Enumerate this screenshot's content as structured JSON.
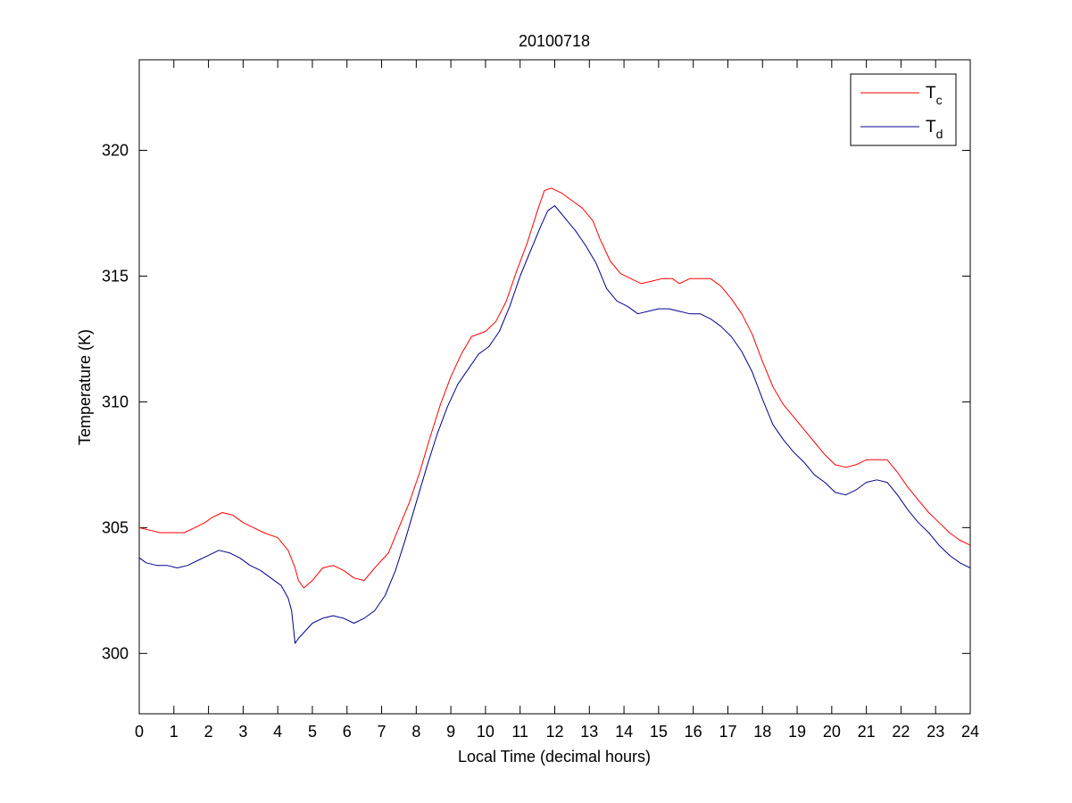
{
  "chart_data": {
    "type": "line",
    "title": "20100718",
    "xlabel": "Local Time (decimal hours)",
    "ylabel": "Temperature (K)",
    "xlim": [
      0,
      24
    ],
    "ylim": [
      297.6,
      323.6
    ],
    "xticks": [
      "0",
      "1",
      "2",
      "3",
      "4",
      "5",
      "6",
      "7",
      "8",
      "9",
      "10",
      "11",
      "12",
      "13",
      "14",
      "15",
      "16",
      "17",
      "18",
      "19",
      "20",
      "21",
      "22",
      "23",
      "24"
    ],
    "yticks": [
      "300",
      "305",
      "310",
      "315",
      "320"
    ],
    "grid": false,
    "legend_position": "top-right",
    "series": [
      {
        "name": "T",
        "subscript": "c",
        "color": "#ff0000",
        "points": [
          [
            0.0,
            305.0
          ],
          [
            0.3,
            304.9
          ],
          [
            0.6,
            304.8
          ],
          [
            1.0,
            304.8
          ],
          [
            1.3,
            304.8
          ],
          [
            1.6,
            305.0
          ],
          [
            1.9,
            305.2
          ],
          [
            2.1,
            305.4
          ],
          [
            2.4,
            305.6
          ],
          [
            2.7,
            305.5
          ],
          [
            3.0,
            305.2
          ],
          [
            3.3,
            305.0
          ],
          [
            3.6,
            304.8
          ],
          [
            4.0,
            304.6
          ],
          [
            4.3,
            304.1
          ],
          [
            4.5,
            303.4
          ],
          [
            4.6,
            302.9
          ],
          [
            4.75,
            302.6
          ],
          [
            5.0,
            302.9
          ],
          [
            5.3,
            303.4
          ],
          [
            5.6,
            303.5
          ],
          [
            5.9,
            303.3
          ],
          [
            6.2,
            303.0
          ],
          [
            6.5,
            302.9
          ],
          [
            6.8,
            303.4
          ],
          [
            7.2,
            304.0
          ],
          [
            7.5,
            305.0
          ],
          [
            7.8,
            306.0
          ],
          [
            8.1,
            307.2
          ],
          [
            8.4,
            308.6
          ],
          [
            8.7,
            309.9
          ],
          [
            9.0,
            311.0
          ],
          [
            9.3,
            311.9
          ],
          [
            9.6,
            312.6
          ],
          [
            10.0,
            312.8
          ],
          [
            10.3,
            313.2
          ],
          [
            10.6,
            314.0
          ],
          [
            10.9,
            315.2
          ],
          [
            11.2,
            316.3
          ],
          [
            11.5,
            317.6
          ],
          [
            11.7,
            318.4
          ],
          [
            11.9,
            318.5
          ],
          [
            12.2,
            318.3
          ],
          [
            12.5,
            318.0
          ],
          [
            12.8,
            317.7
          ],
          [
            13.1,
            317.2
          ],
          [
            13.3,
            316.5
          ],
          [
            13.6,
            315.6
          ],
          [
            13.9,
            315.1
          ],
          [
            14.2,
            314.9
          ],
          [
            14.5,
            314.7
          ],
          [
            14.8,
            314.8
          ],
          [
            15.1,
            314.9
          ],
          [
            15.4,
            314.9
          ],
          [
            15.6,
            314.7
          ],
          [
            15.9,
            314.9
          ],
          [
            16.2,
            314.9
          ],
          [
            16.5,
            314.9
          ],
          [
            16.8,
            314.6
          ],
          [
            17.1,
            314.1
          ],
          [
            17.4,
            313.5
          ],
          [
            17.7,
            312.7
          ],
          [
            18.0,
            311.6
          ],
          [
            18.3,
            310.6
          ],
          [
            18.6,
            309.9
          ],
          [
            18.9,
            309.4
          ],
          [
            19.2,
            308.9
          ],
          [
            19.5,
            308.4
          ],
          [
            19.8,
            307.9
          ],
          [
            20.1,
            307.5
          ],
          [
            20.4,
            307.4
          ],
          [
            20.7,
            307.5
          ],
          [
            21.0,
            307.7
          ],
          [
            21.3,
            307.7
          ],
          [
            21.6,
            307.7
          ],
          [
            21.9,
            307.2
          ],
          [
            22.2,
            306.6
          ],
          [
            22.5,
            306.1
          ],
          [
            22.8,
            305.6
          ],
          [
            23.1,
            305.2
          ],
          [
            23.4,
            304.8
          ],
          [
            23.7,
            304.5
          ],
          [
            24.0,
            304.3
          ]
        ]
      },
      {
        "name": "T",
        "subscript": "d",
        "color": "#00008b",
        "points": [
          [
            0.0,
            303.8
          ],
          [
            0.2,
            303.6
          ],
          [
            0.5,
            303.5
          ],
          [
            0.8,
            303.5
          ],
          [
            1.1,
            303.4
          ],
          [
            1.4,
            303.5
          ],
          [
            1.7,
            303.7
          ],
          [
            2.0,
            303.9
          ],
          [
            2.3,
            304.1
          ],
          [
            2.6,
            304.0
          ],
          [
            2.9,
            303.8
          ],
          [
            3.2,
            303.5
          ],
          [
            3.5,
            303.3
          ],
          [
            3.8,
            303.0
          ],
          [
            4.1,
            302.7
          ],
          [
            4.3,
            302.2
          ],
          [
            4.4,
            301.7
          ],
          [
            4.5,
            300.4
          ],
          [
            4.6,
            300.6
          ],
          [
            4.8,
            300.9
          ],
          [
            5.0,
            301.2
          ],
          [
            5.3,
            301.4
          ],
          [
            5.6,
            301.5
          ],
          [
            5.9,
            301.4
          ],
          [
            6.2,
            301.2
          ],
          [
            6.5,
            301.4
          ],
          [
            6.8,
            301.7
          ],
          [
            7.1,
            302.3
          ],
          [
            7.4,
            303.3
          ],
          [
            7.7,
            304.6
          ],
          [
            8.0,
            306.0
          ],
          [
            8.3,
            307.4
          ],
          [
            8.6,
            308.7
          ],
          [
            8.9,
            309.8
          ],
          [
            9.2,
            310.7
          ],
          [
            9.5,
            311.3
          ],
          [
            9.8,
            311.9
          ],
          [
            10.1,
            312.2
          ],
          [
            10.4,
            312.8
          ],
          [
            10.7,
            313.8
          ],
          [
            11.0,
            315.0
          ],
          [
            11.3,
            316.0
          ],
          [
            11.6,
            317.0
          ],
          [
            11.8,
            317.6
          ],
          [
            12.0,
            317.8
          ],
          [
            12.3,
            317.3
          ],
          [
            12.6,
            316.8
          ],
          [
            12.9,
            316.2
          ],
          [
            13.2,
            315.5
          ],
          [
            13.5,
            314.5
          ],
          [
            13.8,
            314.0
          ],
          [
            14.1,
            313.8
          ],
          [
            14.4,
            313.5
          ],
          [
            14.7,
            313.6
          ],
          [
            15.0,
            313.7
          ],
          [
            15.3,
            313.7
          ],
          [
            15.6,
            313.6
          ],
          [
            15.9,
            313.5
          ],
          [
            16.2,
            313.5
          ],
          [
            16.5,
            313.3
          ],
          [
            16.8,
            313.0
          ],
          [
            17.1,
            312.6
          ],
          [
            17.4,
            312.0
          ],
          [
            17.7,
            311.2
          ],
          [
            18.0,
            310.1
          ],
          [
            18.3,
            309.1
          ],
          [
            18.6,
            308.5
          ],
          [
            18.9,
            308.0
          ],
          [
            19.2,
            307.6
          ],
          [
            19.5,
            307.1
          ],
          [
            19.8,
            306.8
          ],
          [
            20.1,
            306.4
          ],
          [
            20.4,
            306.3
          ],
          [
            20.7,
            306.5
          ],
          [
            21.0,
            306.8
          ],
          [
            21.3,
            306.9
          ],
          [
            21.6,
            306.8
          ],
          [
            21.9,
            306.3
          ],
          [
            22.2,
            305.7
          ],
          [
            22.5,
            305.2
          ],
          [
            22.8,
            304.8
          ],
          [
            23.1,
            304.3
          ],
          [
            23.4,
            303.9
          ],
          [
            23.7,
            303.6
          ],
          [
            24.0,
            303.4
          ]
        ]
      }
    ]
  }
}
